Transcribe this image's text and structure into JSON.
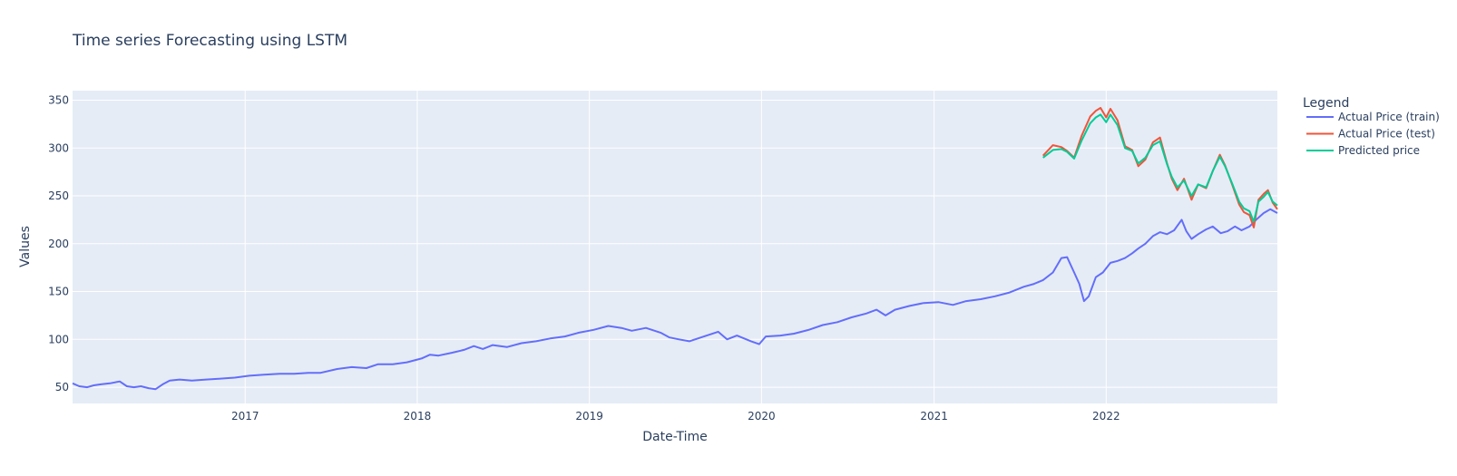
{
  "chart_data": {
    "type": "line",
    "title": "Time series Forecasting using LSTM",
    "xlabel": "Date-Time",
    "ylabel": "Values",
    "xlim": [
      "2016-01-01",
      "2022-12-30"
    ],
    "ylim": [
      33,
      360
    ],
    "x_ticks": [
      "2017",
      "2018",
      "2019",
      "2020",
      "2021",
      "2022"
    ],
    "y_ticks": [
      50,
      100,
      150,
      200,
      250,
      300,
      350
    ],
    "grid": true,
    "legend": {
      "title": "Legend",
      "placement": "right"
    },
    "colors": {
      "plot_bg": "#e5ecf6",
      "grid": "#ffffff",
      "text": "#2a3f5f"
    },
    "series": [
      {
        "name": "Actual Price (train)",
        "color": "#636efa",
        "points": [
          [
            "2016-01-01",
            54
          ],
          [
            "2016-01-15",
            51
          ],
          [
            "2016-02-01",
            50
          ],
          [
            "2016-02-15",
            52
          ],
          [
            "2016-03-01",
            53
          ],
          [
            "2016-03-20",
            54
          ],
          [
            "2016-04-10",
            56
          ],
          [
            "2016-04-25",
            51
          ],
          [
            "2016-05-10",
            50
          ],
          [
            "2016-05-25",
            51
          ],
          [
            "2016-06-10",
            49
          ],
          [
            "2016-06-25",
            48
          ],
          [
            "2016-07-10",
            53
          ],
          [
            "2016-07-25",
            57
          ],
          [
            "2016-08-15",
            58
          ],
          [
            "2016-09-10",
            57
          ],
          [
            "2016-10-10",
            58
          ],
          [
            "2016-11-10",
            59
          ],
          [
            "2016-12-10",
            60
          ],
          [
            "2017-01-10",
            62
          ],
          [
            "2017-02-10",
            63
          ],
          [
            "2017-03-15",
            64
          ],
          [
            "2017-04-15",
            64
          ],
          [
            "2017-05-15",
            65
          ],
          [
            "2017-06-10",
            65
          ],
          [
            "2017-07-15",
            69
          ],
          [
            "2017-08-15",
            71
          ],
          [
            "2017-09-15",
            70
          ],
          [
            "2017-10-10",
            74
          ],
          [
            "2017-11-10",
            74
          ],
          [
            "2017-12-10",
            76
          ],
          [
            "2018-01-10",
            80
          ],
          [
            "2018-01-28",
            84
          ],
          [
            "2018-02-15",
            83
          ],
          [
            "2018-03-15",
            86
          ],
          [
            "2018-04-10",
            89
          ],
          [
            "2018-05-01",
            93
          ],
          [
            "2018-05-20",
            90
          ],
          [
            "2018-06-10",
            94
          ],
          [
            "2018-07-10",
            92
          ],
          [
            "2018-08-10",
            96
          ],
          [
            "2018-09-10",
            98
          ],
          [
            "2018-10-10",
            101
          ],
          [
            "2018-11-10",
            103
          ],
          [
            "2018-12-10",
            107
          ],
          [
            "2019-01-10",
            110
          ],
          [
            "2019-02-10",
            114
          ],
          [
            "2019-03-10",
            112
          ],
          [
            "2019-04-01",
            109
          ],
          [
            "2019-05-01",
            112
          ],
          [
            "2019-06-01",
            107
          ],
          [
            "2019-06-20",
            102
          ],
          [
            "2019-07-10",
            100
          ],
          [
            "2019-08-01",
            98
          ],
          [
            "2019-09-01",
            103
          ],
          [
            "2019-10-01",
            108
          ],
          [
            "2019-10-20",
            100
          ],
          [
            "2019-11-10",
            104
          ],
          [
            "2019-12-10",
            98
          ],
          [
            "2019-12-27",
            95
          ],
          [
            "2020-01-10",
            103
          ],
          [
            "2020-02-10",
            104
          ],
          [
            "2020-03-10",
            106
          ],
          [
            "2020-04-10",
            110
          ],
          [
            "2020-05-10",
            115
          ],
          [
            "2020-06-10",
            118
          ],
          [
            "2020-07-10",
            123
          ],
          [
            "2020-08-10",
            127
          ],
          [
            "2020-09-01",
            131
          ],
          [
            "2020-09-20",
            125
          ],
          [
            "2020-10-10",
            131
          ],
          [
            "2020-11-10",
            135
          ],
          [
            "2020-12-10",
            138
          ],
          [
            "2021-01-10",
            139
          ],
          [
            "2021-02-10",
            136
          ],
          [
            "2021-03-10",
            140
          ],
          [
            "2021-04-10",
            142
          ],
          [
            "2021-05-10",
            145
          ],
          [
            "2021-06-10",
            149
          ],
          [
            "2021-07-10",
            155
          ],
          [
            "2021-08-01",
            158
          ],
          [
            "2021-08-20",
            162
          ],
          [
            "2021-09-10",
            170
          ],
          [
            "2021-09-28",
            185
          ],
          [
            "2021-10-10",
            186
          ],
          [
            "2021-10-25",
            170
          ],
          [
            "2021-11-05",
            158
          ],
          [
            "2021-11-15",
            140
          ],
          [
            "2021-11-25",
            145
          ],
          [
            "2021-12-10",
            165
          ],
          [
            "2021-12-25",
            170
          ],
          [
            "2022-01-10",
            180
          ],
          [
            "2022-01-25",
            182
          ],
          [
            "2022-02-10",
            185
          ],
          [
            "2022-02-25",
            190
          ],
          [
            "2022-03-10",
            195
          ],
          [
            "2022-03-25",
            200
          ],
          [
            "2022-04-10",
            208
          ],
          [
            "2022-04-25",
            212
          ],
          [
            "2022-05-10",
            210
          ],
          [
            "2022-05-25",
            214
          ],
          [
            "2022-06-10",
            225
          ],
          [
            "2022-06-20",
            213
          ],
          [
            "2022-07-01",
            205
          ],
          [
            "2022-07-15",
            210
          ],
          [
            "2022-08-01",
            215
          ],
          [
            "2022-08-15",
            218
          ],
          [
            "2022-09-01",
            211
          ],
          [
            "2022-09-15",
            213
          ],
          [
            "2022-10-01",
            218
          ],
          [
            "2022-10-15",
            214
          ],
          [
            "2022-11-01",
            218
          ],
          [
            "2022-11-15",
            225
          ],
          [
            "2022-12-01",
            232
          ],
          [
            "2022-12-15",
            236
          ],
          [
            "2022-12-30",
            232
          ]
        ]
      },
      {
        "name": "Actual Price (test)",
        "color": "#ef553b",
        "points": [
          [
            "2021-08-20",
            292
          ],
          [
            "2021-09-10",
            303
          ],
          [
            "2021-09-28",
            301
          ],
          [
            "2021-10-10",
            297
          ],
          [
            "2021-10-25",
            290
          ],
          [
            "2021-11-10",
            313
          ],
          [
            "2021-11-28",
            333
          ],
          [
            "2021-12-10",
            339
          ],
          [
            "2021-12-20",
            342
          ],
          [
            "2022-01-01",
            332
          ],
          [
            "2022-01-10",
            341
          ],
          [
            "2022-01-25",
            329
          ],
          [
            "2022-02-10",
            302
          ],
          [
            "2022-02-25",
            298
          ],
          [
            "2022-03-10",
            281
          ],
          [
            "2022-03-25",
            288
          ],
          [
            "2022-04-10",
            306
          ],
          [
            "2022-04-25",
            311
          ],
          [
            "2022-05-10",
            284
          ],
          [
            "2022-05-20",
            268
          ],
          [
            "2022-06-01",
            256
          ],
          [
            "2022-06-15",
            268
          ],
          [
            "2022-07-01",
            246
          ],
          [
            "2022-07-15",
            262
          ],
          [
            "2022-08-01",
            258
          ],
          [
            "2022-08-15",
            276
          ],
          [
            "2022-08-30",
            293
          ],
          [
            "2022-09-10",
            282
          ],
          [
            "2022-09-25",
            262
          ],
          [
            "2022-10-10",
            241
          ],
          [
            "2022-10-20",
            233
          ],
          [
            "2022-11-01",
            230
          ],
          [
            "2022-11-10",
            217
          ],
          [
            "2022-11-20",
            246
          ],
          [
            "2022-12-01",
            252
          ],
          [
            "2022-12-10",
            256
          ],
          [
            "2022-12-20",
            243
          ],
          [
            "2022-12-30",
            236
          ]
        ]
      },
      {
        "name": "Predicted price",
        "color": "#00cc96",
        "points": [
          [
            "2021-08-20",
            290
          ],
          [
            "2021-09-10",
            298
          ],
          [
            "2021-09-28",
            299
          ],
          [
            "2021-10-10",
            296
          ],
          [
            "2021-10-25",
            289
          ],
          [
            "2021-11-10",
            308
          ],
          [
            "2021-11-28",
            326
          ],
          [
            "2021-12-10",
            332
          ],
          [
            "2021-12-20",
            335
          ],
          [
            "2022-01-01",
            327
          ],
          [
            "2022-01-10",
            335
          ],
          [
            "2022-01-25",
            324
          ],
          [
            "2022-02-10",
            300
          ],
          [
            "2022-02-25",
            297
          ],
          [
            "2022-03-10",
            284
          ],
          [
            "2022-03-25",
            290
          ],
          [
            "2022-04-10",
            303
          ],
          [
            "2022-04-25",
            307
          ],
          [
            "2022-05-10",
            283
          ],
          [
            "2022-05-20",
            270
          ],
          [
            "2022-06-01",
            259
          ],
          [
            "2022-06-15",
            266
          ],
          [
            "2022-07-01",
            250
          ],
          [
            "2022-07-15",
            262
          ],
          [
            "2022-08-01",
            259
          ],
          [
            "2022-08-15",
            276
          ],
          [
            "2022-08-30",
            291
          ],
          [
            "2022-09-10",
            281
          ],
          [
            "2022-09-25",
            263
          ],
          [
            "2022-10-10",
            244
          ],
          [
            "2022-10-20",
            237
          ],
          [
            "2022-11-01",
            234
          ],
          [
            "2022-11-10",
            223
          ],
          [
            "2022-11-20",
            244
          ],
          [
            "2022-12-01",
            249
          ],
          [
            "2022-12-10",
            254
          ],
          [
            "2022-12-20",
            244
          ],
          [
            "2022-12-30",
            240
          ]
        ]
      }
    ]
  }
}
